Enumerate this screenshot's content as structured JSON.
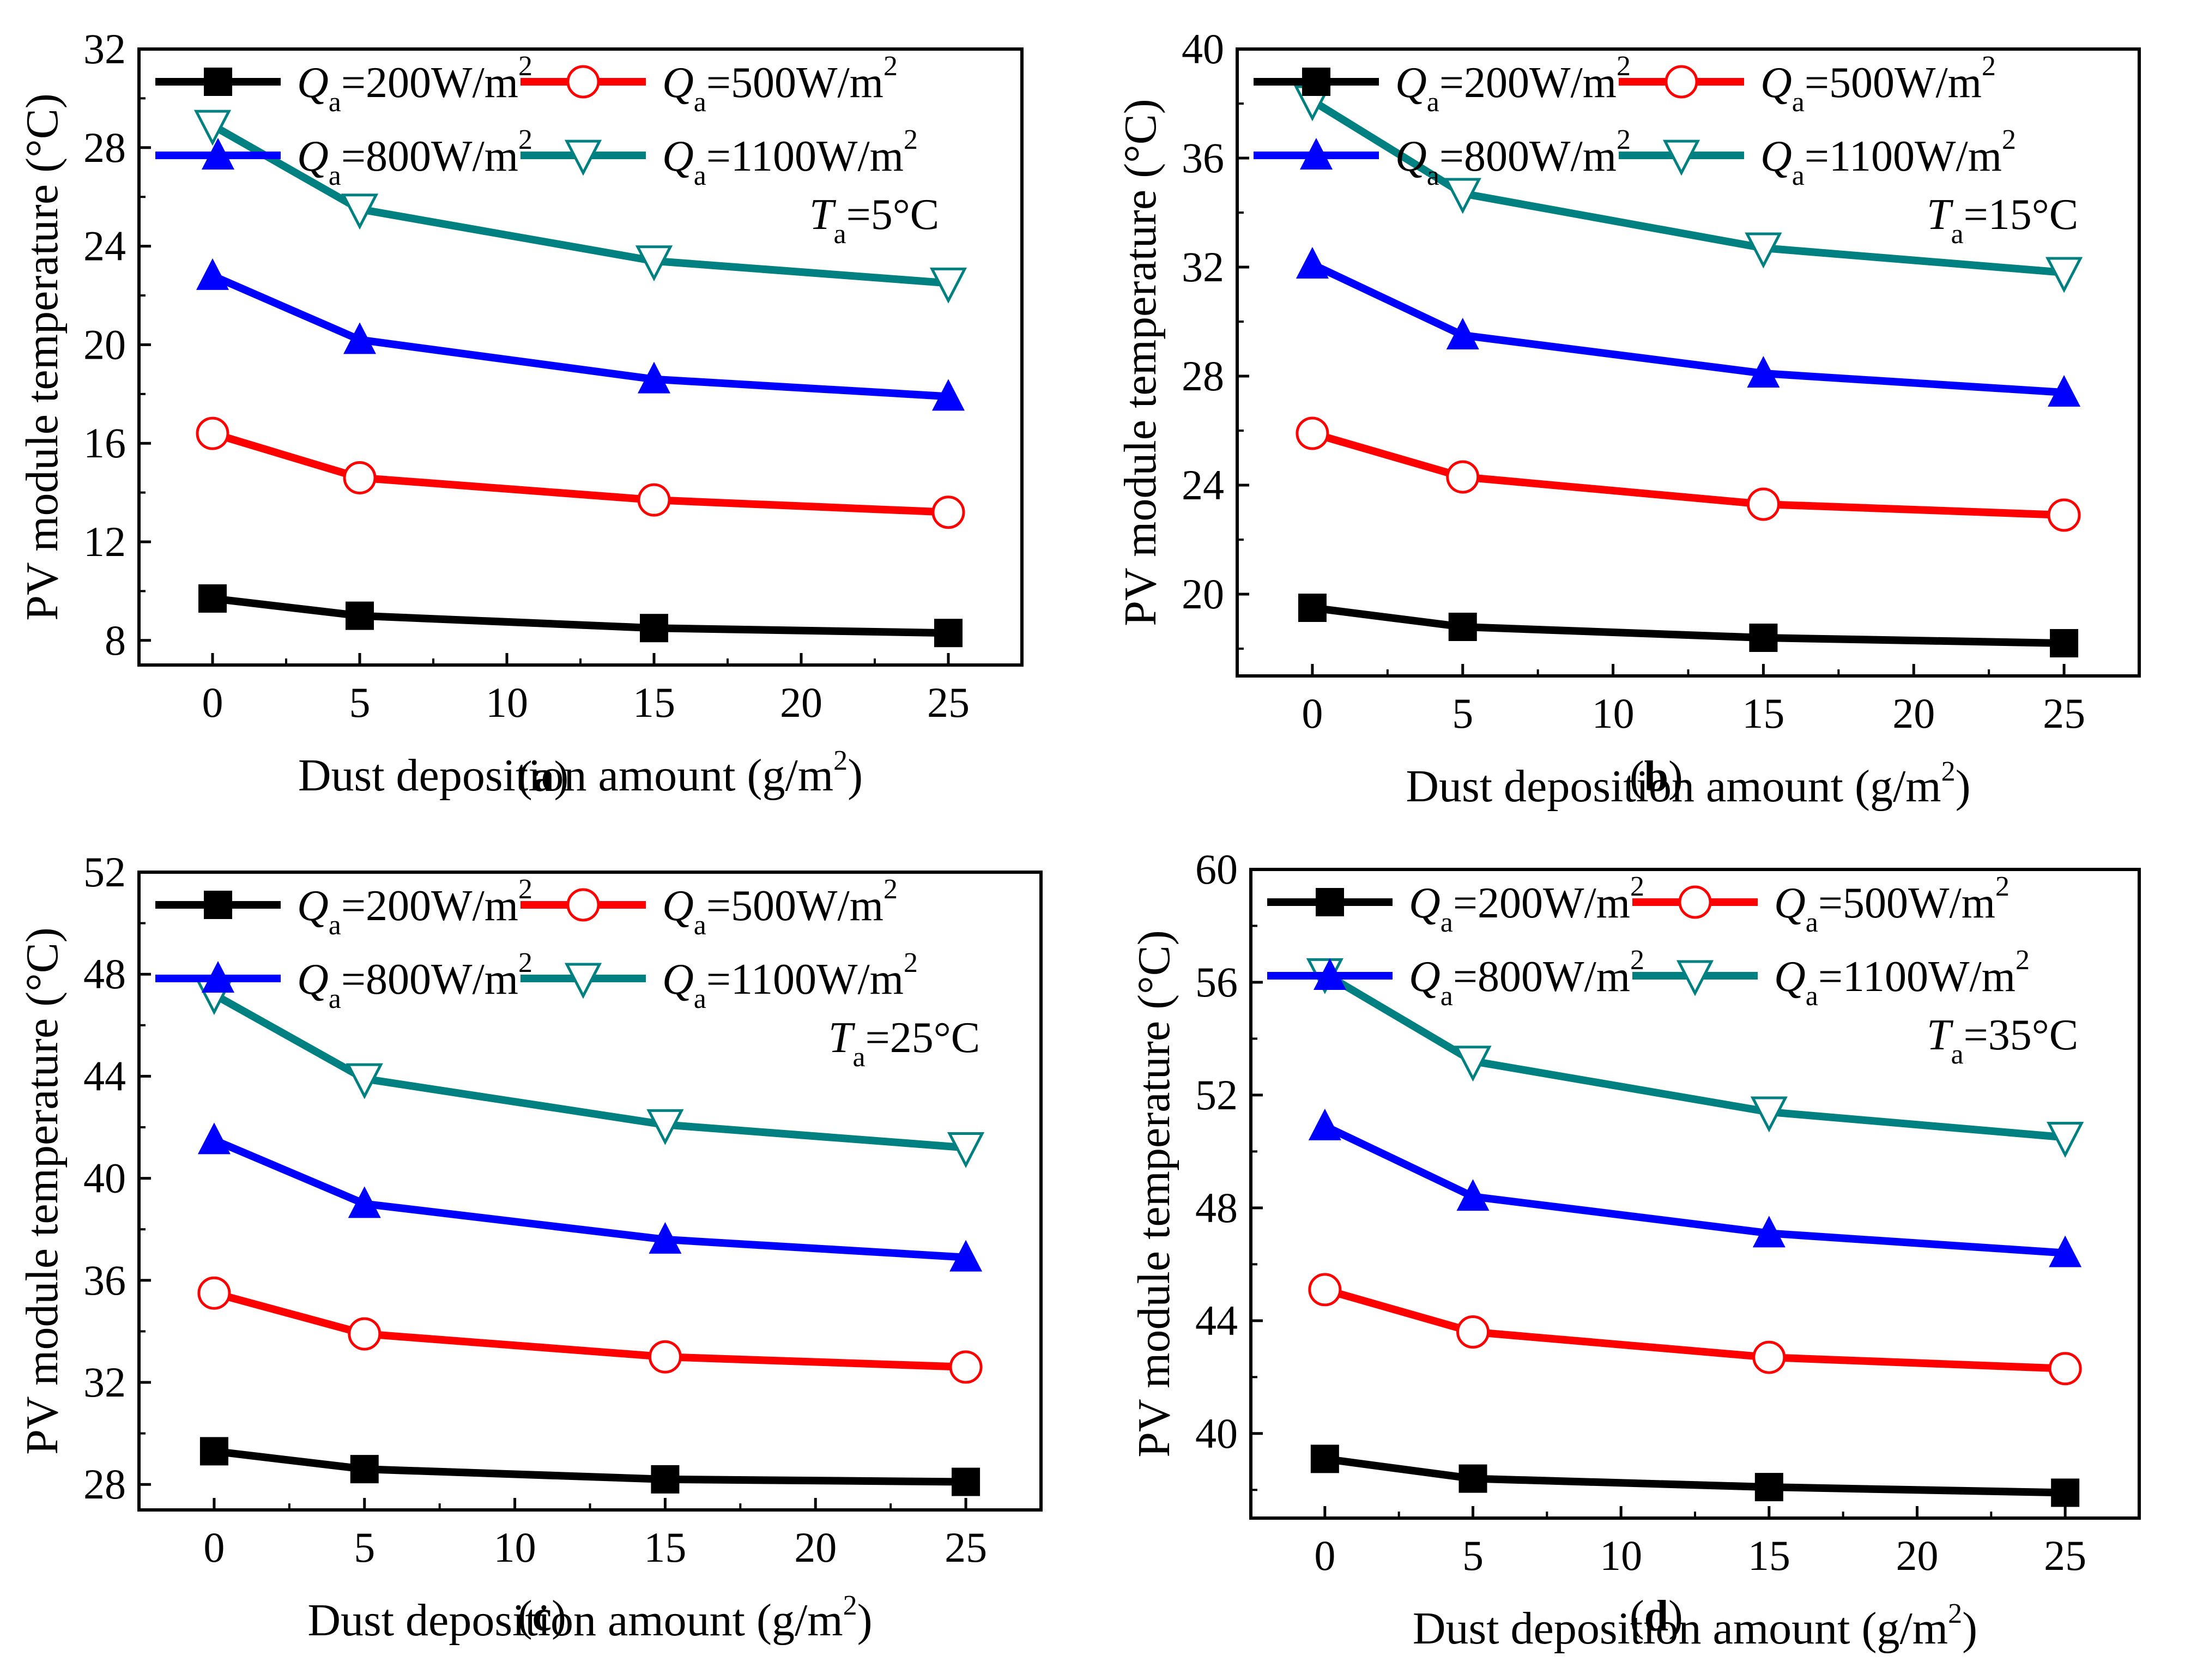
{
  "figure": {
    "x_title": "Dust deposition amount (g/m",
    "x_title_sup": "2",
    "x_title_end": ")",
    "y_title": "PV module temperature (°C)",
    "legend_prefix": "Q",
    "legend_sub": "a",
    "legend_unit_sup": "2",
    "colors": {
      "s200": "#000000",
      "s500": "#ff0000",
      "s800": "#0000ff",
      "s1100": "#008080"
    },
    "markers": {
      "s200": "filled-square",
      "s500": "open-circle",
      "s800": "filled-triangle-up",
      "s1100": "open-triangle-down"
    }
  },
  "chart_data": [
    {
      "type": "line",
      "panel": "a",
      "caption_open": "(",
      "caption_letter": "a",
      "caption_close": ")",
      "annotation_var": "T",
      "annotation_sub": "a",
      "annotation_value": "=5°C",
      "xlabel": "Dust deposition amount (g/m2)",
      "ylabel": "PV module temperature (°C)",
      "xlim": [
        -2.5,
        27.5
      ],
      "xticks": [
        0,
        5,
        10,
        15,
        20,
        25
      ],
      "ylim": [
        7,
        32
      ],
      "yticks": [
        8,
        12,
        16,
        20,
        24,
        28,
        32
      ],
      "x": [
        0,
        5,
        15,
        25
      ],
      "series": [
        {
          "name": "Qa=200W/m2",
          "legend_value": "=200W/m",
          "key": "s200",
          "values": [
            9.7,
            9.0,
            8.5,
            8.3
          ]
        },
        {
          "name": "Qa=500W/m2",
          "legend_value": "=500W/m",
          "key": "s500",
          "values": [
            16.4,
            14.6,
            13.7,
            13.2
          ]
        },
        {
          "name": "Qa=800W/m2",
          "legend_value": "=800W/m",
          "key": "s800",
          "values": [
            22.8,
            20.2,
            18.6,
            17.9
          ]
        },
        {
          "name": "Qa=1100W/m2",
          "legend_value": "=1100W/m",
          "key": "s1100",
          "values": [
            28.9,
            25.5,
            23.4,
            22.5
          ]
        }
      ]
    },
    {
      "type": "line",
      "panel": "b",
      "caption_open": "(",
      "caption_letter": "b",
      "caption_close": ")",
      "annotation_var": "T",
      "annotation_sub": "a",
      "annotation_value": "=15°C",
      "xlabel": "Dust deposition amount (g/m2)",
      "ylabel": "PV module temperature (°C)",
      "xlim": [
        -2.5,
        27.5
      ],
      "xticks": [
        0,
        5,
        10,
        15,
        20,
        25
      ],
      "ylim": [
        17,
        40
      ],
      "yticks": [
        20,
        24,
        28,
        32,
        36,
        40
      ],
      "x": [
        0,
        5,
        15,
        25
      ],
      "series": [
        {
          "name": "Qa=200W/m2",
          "legend_value": "=200W/m",
          "key": "s200",
          "values": [
            19.5,
            18.8,
            18.4,
            18.2
          ]
        },
        {
          "name": "Qa=500W/m2",
          "legend_value": "=500W/m",
          "key": "s500",
          "values": [
            25.9,
            24.3,
            23.3,
            22.9
          ]
        },
        {
          "name": "Qa=800W/m2",
          "legend_value": "=800W/m",
          "key": "s800",
          "values": [
            32.1,
            29.5,
            28.1,
            27.4
          ]
        },
        {
          "name": "Qa=1100W/m2",
          "legend_value": "=1100W/m",
          "key": "s1100",
          "values": [
            38.1,
            34.7,
            32.7,
            31.8
          ]
        }
      ]
    },
    {
      "type": "line",
      "panel": "c",
      "caption_open": "(",
      "caption_letter": "c",
      "caption_close": ")",
      "annotation_var": "T",
      "annotation_sub": "a",
      "annotation_value": "=25°C",
      "xlabel": "Dust deposition amount (g/m2)",
      "ylabel": "PV module temperature (°C)",
      "xlim": [
        -2.5,
        27.5
      ],
      "xticks": [
        0,
        5,
        10,
        15,
        20,
        25
      ],
      "ylim": [
        27,
        52
      ],
      "yticks": [
        28,
        32,
        36,
        40,
        44,
        48,
        52
      ],
      "x": [
        0,
        5,
        15,
        25
      ],
      "series": [
        {
          "name": "Qa=200W/m2",
          "legend_value": "=200W/m",
          "key": "s200",
          "values": [
            29.3,
            28.6,
            28.2,
            28.1
          ]
        },
        {
          "name": "Qa=500W/m2",
          "legend_value": "=500W/m",
          "key": "s500",
          "values": [
            35.5,
            33.9,
            33.0,
            32.6
          ]
        },
        {
          "name": "Qa=800W/m2",
          "legend_value": "=800W/m",
          "key": "s800",
          "values": [
            41.5,
            39.0,
            37.6,
            36.9
          ]
        },
        {
          "name": "Qa=1100W/m2",
          "legend_value": "=1100W/m",
          "key": "s1100",
          "values": [
            47.2,
            43.9,
            42.1,
            41.2
          ]
        }
      ]
    },
    {
      "type": "line",
      "panel": "d",
      "caption_open": "(",
      "caption_letter": "d",
      "caption_close": ")",
      "annotation_var": "T",
      "annotation_sub": "a",
      "annotation_value": "=35°C",
      "xlabel": "Dust deposition amount (g/m2)",
      "ylabel": "PV module temperature (°C)",
      "xlim": [
        -2.5,
        27.5
      ],
      "xticks": [
        0,
        5,
        10,
        15,
        20,
        25
      ],
      "ylim": [
        37,
        60
      ],
      "yticks": [
        40,
        44,
        48,
        52,
        56,
        60
      ],
      "x": [
        0,
        5,
        15,
        25
      ],
      "series": [
        {
          "name": "Qa=200W/m2",
          "legend_value": "=200W/m",
          "key": "s200",
          "values": [
            39.1,
            38.4,
            38.1,
            37.9
          ]
        },
        {
          "name": "Qa=500W/m2",
          "legend_value": "=500W/m",
          "key": "s500",
          "values": [
            45.1,
            43.6,
            42.7,
            42.3
          ]
        },
        {
          "name": "Qa=800W/m2",
          "legend_value": "=800W/m",
          "key": "s800",
          "values": [
            50.9,
            48.4,
            47.1,
            46.4
          ]
        },
        {
          "name": "Qa=1100W/m2",
          "legend_value": "=1100W/m",
          "key": "s1100",
          "values": [
            56.3,
            53.2,
            51.4,
            50.5
          ]
        }
      ]
    }
  ]
}
